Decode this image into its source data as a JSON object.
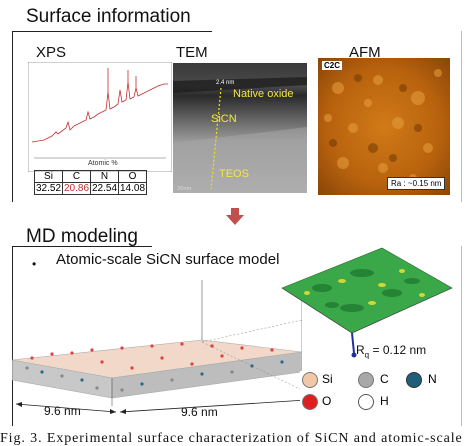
{
  "surface_section": {
    "title": "Surface information",
    "xps": {
      "label": "XPS",
      "axis_label": "Atomic %",
      "table_headers": [
        "Si",
        "C",
        "N",
        "O"
      ],
      "table_values": [
        "32.52",
        "20.86",
        "22.54",
        "14.08"
      ]
    },
    "tem": {
      "label": "TEM",
      "thickness": "2.4 nm",
      "layers": [
        "Native oxide",
        "SiCN",
        "TEOS"
      ]
    },
    "afm": {
      "label": "AFM",
      "sample": "C2C",
      "roughness": "Ra : ~0.15 nm"
    }
  },
  "arrow_color": "#c0504d",
  "md_section": {
    "title": "MD modeling",
    "bullet": "Atomic-scale SiCN surface model",
    "dims": [
      "9.6 nm",
      "9.6 nm"
    ],
    "rq": "0.12 nm",
    "rq_prefix": "R",
    "rq_sub": "q",
    "rq_eq": " = ",
    "legend": [
      {
        "symbol": "Si",
        "color": "#f0c8a8"
      },
      {
        "symbol": "C",
        "color": "#a8a8a8"
      },
      {
        "symbol": "N",
        "color": "#1f5f7a"
      },
      {
        "symbol": "O",
        "color": "#e02020"
      },
      {
        "symbol": "H",
        "color": "#ffffff"
      }
    ]
  },
  "caption": "Fig. 3. Experimental surface characterization of SiCN and atomic-scale"
}
